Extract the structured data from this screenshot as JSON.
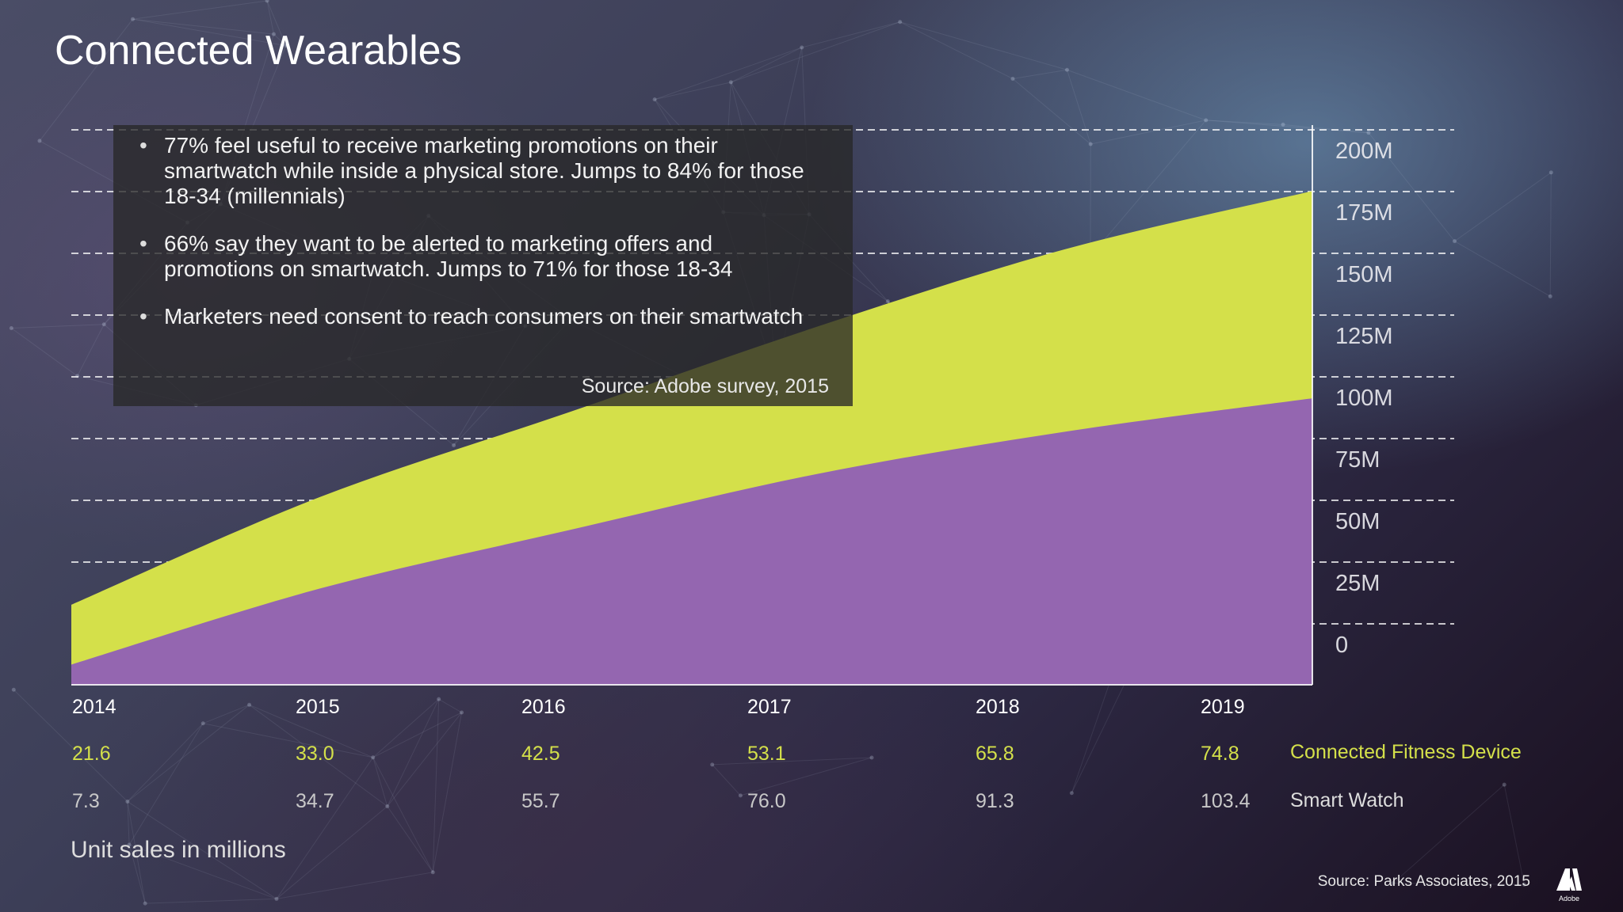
{
  "title": "Connected Wearables",
  "bullets": [
    "77% feel useful to receive marketing promotions on their smartwatch while inside a physical store. Jumps to 84% for those 18-34 (millennials)",
    "66% say they want to be alerted to marketing offers and promotions on smartwatch. Jumps to 71% for those 18-34",
    "Marketers need consent to reach consumers on their smartwatch"
  ],
  "box_source": "Source: Adobe survey, 2015",
  "units_note": "Unit sales in millions",
  "footer_source": "Source: Parks Associates, 2015",
  "logo_text": "Adobe",
  "colors": {
    "fitness": "#d4e04a",
    "smartwatch": "#9466b0"
  },
  "chart_data": {
    "type": "area",
    "stacked": true,
    "x": [
      "2014",
      "2015",
      "2016",
      "2017",
      "2018",
      "2019"
    ],
    "series": [
      {
        "name": "Smart Watch",
        "values": [
          7.3,
          34.7,
          55.7,
          76.0,
          91.3,
          103.4
        ]
      },
      {
        "name": "Connected Fitness Device",
        "values": [
          21.6,
          33.0,
          42.5,
          53.1,
          65.8,
          74.8
        ]
      }
    ],
    "yticks": [
      "0",
      "25M",
      "50M",
      "75M",
      "100M",
      "125M",
      "150M",
      "175M",
      "200M"
    ],
    "ylim": [
      0,
      200
    ],
    "grid": true,
    "axis_side": "right"
  }
}
